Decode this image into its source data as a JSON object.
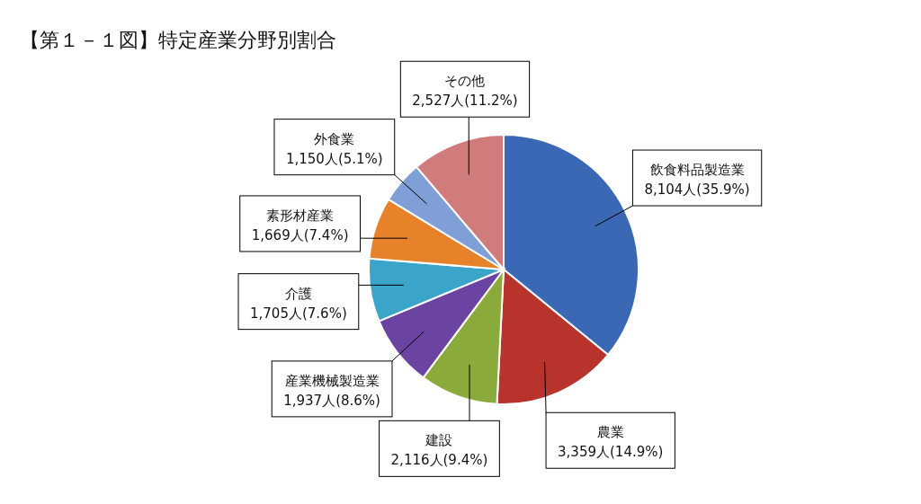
{
  "chart_data": {
    "type": "pie",
    "title": "【第１－１図】特定産業分野別割合",
    "categories": [
      "飲食料品製造業",
      "農業",
      "建設",
      "産業機械製造業",
      "介護",
      "素形材産業",
      "外食業",
      "その他"
    ],
    "values": [
      8104,
      3359,
      2116,
      1937,
      1705,
      1669,
      1150,
      2527
    ],
    "value_labels": [
      "8,104人(35.9%)",
      "3,359人(14.9%)",
      "2,116人(9.4%)",
      "1,937人(8.6%)",
      "1,705人(7.6%)",
      "1,669人(7.4%)",
      "1,150人(5.1%)",
      "2,527人(11.2%)"
    ],
    "colors": [
      "#3a68b4",
      "#b8332c",
      "#8aab3c",
      "#6a44a0",
      "#3aa5c8",
      "#e8822a",
      "#7f9fd6",
      "#d07c7c"
    ]
  }
}
